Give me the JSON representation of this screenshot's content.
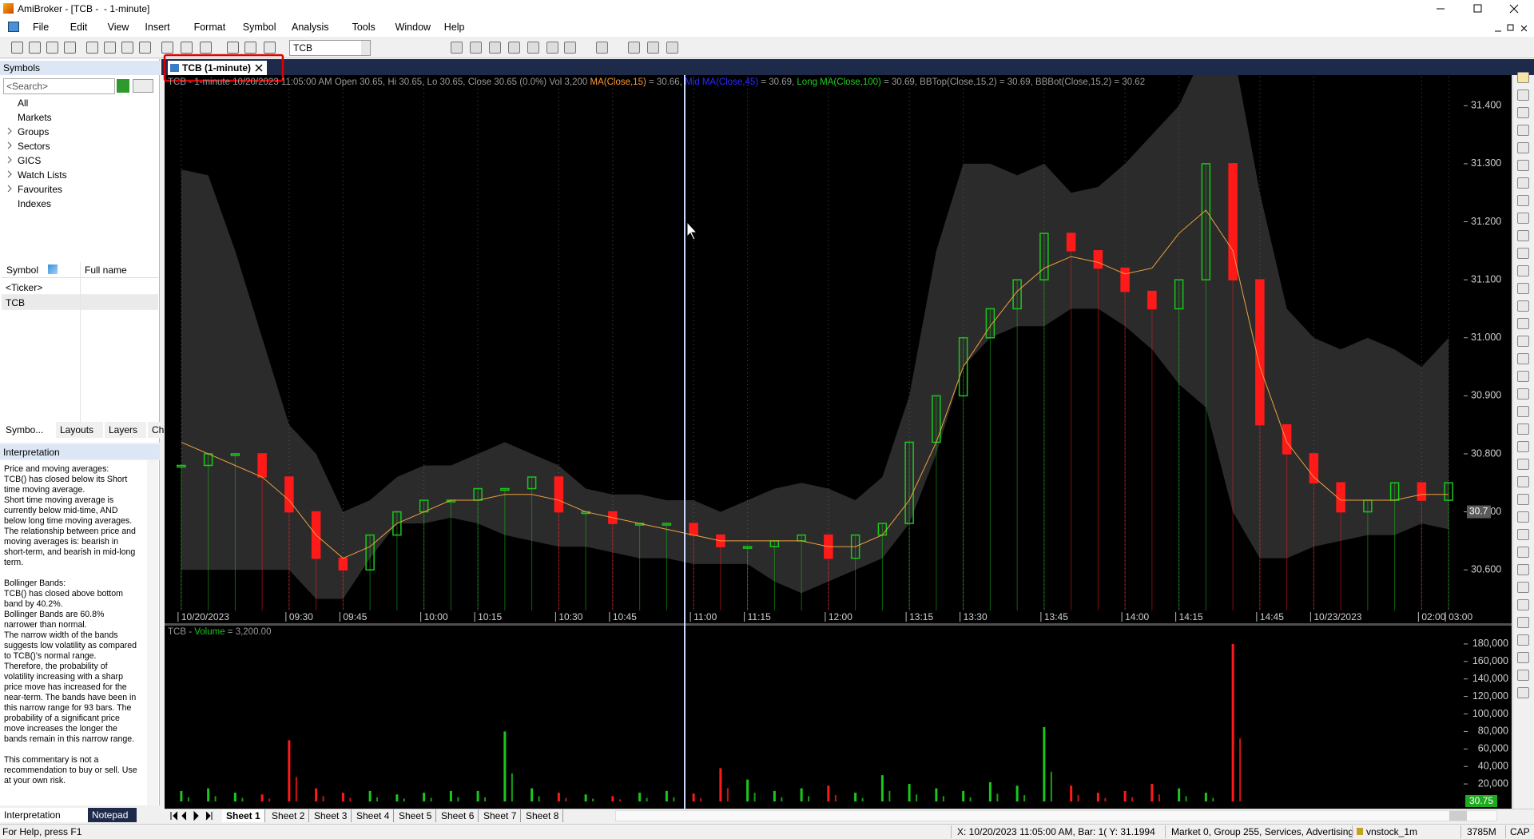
{
  "window": {
    "title": "AmiBroker - [TCB -  - 1-minute]"
  },
  "menu": [
    "File",
    "Edit",
    "View",
    "Insert",
    "Format",
    "Symbol",
    "Analysis",
    "Tools",
    "Window",
    "Help"
  ],
  "toolbar": {
    "symbol": "TCB"
  },
  "symbols_panel": {
    "title": "Symbols",
    "search": "<Search>",
    "tree": [
      "All",
      "Markets",
      "Groups",
      "Sectors",
      "GICS",
      "Watch Lists",
      "Favourites",
      "Indexes"
    ],
    "columns": [
      "Symbol",
      "Full name"
    ],
    "rows": [
      "<Ticker>",
      "TCB"
    ],
    "tabs": [
      "Symbo...",
      "Layouts",
      "Layers",
      "Charts"
    ]
  },
  "interpretation": {
    "title": "Interpretation",
    "paragraphs": [
      [
        "Price and moving averages:",
        "TCB() has closed below its Short",
        "time moving average.",
        "Short time moving average is",
        "currently below mid-time, AND",
        "below long time moving averages.",
        "The relationship between price and",
        "moving averages is: bearish in",
        "short-term, and bearish in mid-long",
        "term."
      ],
      [
        "Bollinger Bands:",
        "TCB() has closed above bottom",
        "band by 40.2%.",
        "Bollinger Bands are 60.8%",
        "narrower than normal.",
        "The narrow width of the bands",
        "suggests low volatility as compared",
        "to TCB()'s normal range.",
        "Therefore, the probability of",
        "volatility increasing with a sharp",
        "price move has increased for the",
        "near-term. The bands have been in",
        "this narrow range for 93 bars. The",
        "probability of a significant price",
        "move increases the longer the",
        "bands remain in this narrow range."
      ],
      [
        "This commentary is not a",
        "recommendation to buy or sell. Use",
        "at your own risk."
      ]
    ],
    "tabs": [
      "Interpretation",
      "Notepad"
    ]
  },
  "chart_tab": "TCB (1-minute)",
  "chart_data": [
    {
      "type": "price",
      "legend": [
        {
          "text": "TCB - 1-minute 10/20/2023 11:05:00 AM Open 30.65, Hi 30.65, Lo 30.65, Close 30.65 (0.0%) Vol 3,200 ",
          "color": "#9a9a9a"
        },
        {
          "text": "MA(Close,15)",
          "color": "#ff9933"
        },
        {
          "text": " = 30.66, ",
          "color": "#9a9a9a"
        },
        {
          "text": "Mid MA(Close,45)",
          "color": "#2a2aff"
        },
        {
          "text": " = 30.69, ",
          "color": "#9a9a9a"
        },
        {
          "text": "Long MA(Close,100)",
          "color": "#22cc22"
        },
        {
          "text": " = 30.69, BBTop(Close,15,2) = 30.69, BBBot(Close,15,2) = 30.62",
          "color": "#9a9a9a"
        }
      ],
      "categories": [
        "10/20/2023",
        null,
        null,
        null,
        "09:30",
        null,
        "09:45",
        null,
        null,
        "10:00",
        null,
        "10:15",
        null,
        null,
        "10:30",
        null,
        "10:45",
        null,
        null,
        "11:00",
        null,
        "11:15",
        null,
        null,
        "12:00",
        null,
        null,
        "13:15",
        null,
        "13:30",
        null,
        null,
        "13:45",
        null,
        null,
        "14:00",
        null,
        "14:15",
        null,
        null,
        "14:45",
        null,
        "10/23/2023",
        null,
        null,
        null,
        "02:00",
        "03:00"
      ],
      "close": [
        30.78,
        30.8,
        30.8,
        30.76,
        30.7,
        30.62,
        30.6,
        30.66,
        30.7,
        30.72,
        30.72,
        30.74,
        30.74,
        30.76,
        30.7,
        30.7,
        30.68,
        30.68,
        30.68,
        30.66,
        30.64,
        30.64,
        30.65,
        30.66,
        30.62,
        30.66,
        30.68,
        30.82,
        30.9,
        31.0,
        31.05,
        31.1,
        31.18,
        31.15,
        31.12,
        31.08,
        31.05,
        31.1,
        31.3,
        31.1,
        30.85,
        30.8,
        30.75,
        30.7,
        30.72,
        30.75,
        30.72,
        30.75
      ],
      "bb_top": [
        31.29,
        31.28,
        31.15,
        31.0,
        30.85,
        30.8,
        30.7,
        30.72,
        30.76,
        30.78,
        30.78,
        30.8,
        30.82,
        30.8,
        30.78,
        30.74,
        30.73,
        30.73,
        30.72,
        30.72,
        30.7,
        30.72,
        30.74,
        30.75,
        30.74,
        30.72,
        30.76,
        30.9,
        31.15,
        31.3,
        31.3,
        31.28,
        31.3,
        31.25,
        31.26,
        31.3,
        31.35,
        31.4,
        31.5,
        31.5,
        31.25,
        31.05,
        31.0,
        30.98,
        31.0,
        30.98,
        30.95,
        31.0
      ],
      "bb_bottom": [
        30.6,
        30.6,
        30.6,
        30.6,
        30.6,
        30.55,
        30.55,
        30.62,
        30.68,
        30.68,
        30.69,
        30.68,
        30.66,
        30.65,
        30.64,
        30.64,
        30.63,
        30.62,
        30.62,
        30.61,
        30.61,
        30.61,
        30.58,
        30.56,
        30.58,
        30.6,
        30.62,
        30.68,
        30.8,
        30.95,
        31.0,
        31.02,
        31.02,
        31.05,
        31.05,
        31.02,
        30.98,
        30.92,
        30.88,
        30.7,
        30.62,
        30.62,
        30.64,
        30.65,
        30.66,
        30.66,
        30.68,
        30.67
      ],
      "ma": [
        30.82,
        30.8,
        30.78,
        30.76,
        30.72,
        30.66,
        30.62,
        30.64,
        30.68,
        30.7,
        30.72,
        30.72,
        30.73,
        30.73,
        30.72,
        30.7,
        30.69,
        30.68,
        30.67,
        30.66,
        30.65,
        30.65,
        30.65,
        30.65,
        30.64,
        30.64,
        30.66,
        30.72,
        30.82,
        30.95,
        31.02,
        31.08,
        31.12,
        31.14,
        31.13,
        31.11,
        31.12,
        31.18,
        31.22,
        31.15,
        30.95,
        30.82,
        30.76,
        30.72,
        30.72,
        30.72,
        30.73,
        30.73
      ],
      "up_color": "#19c819",
      "down_color": "#ff1a1a",
      "band_color": "#2b2b2b",
      "ma_color": "#f0a040",
      "ylim": [
        30.53,
        31.45
      ],
      "yticks": [
        {
          "value": 30.6,
          "label": "30.600"
        },
        {
          "value": 30.7,
          "label": "30.700"
        },
        {
          "value": 30.8,
          "label": "30.800"
        },
        {
          "value": 30.9,
          "label": "30.900"
        },
        {
          "value": 31.0,
          "label": "31.000"
        },
        {
          "value": 31.1,
          "label": "31.100"
        },
        {
          "value": 31.2,
          "label": "31.200"
        },
        {
          "value": 31.3,
          "label": "31.300"
        },
        {
          "value": 31.4,
          "label": "31.400"
        }
      ],
      "price_tag": 30.7,
      "grid": false
    },
    {
      "type": "volume",
      "legend": [
        {
          "text": "TCB - ",
          "color": "#9a9a9a"
        },
        {
          "text": "Volume",
          "color": "#19c819"
        },
        {
          "text": " = 3,200.00",
          "color": "#9a9a9a"
        }
      ],
      "values": [
        12000,
        15000,
        10000,
        8000,
        70000,
        15000,
        10000,
        12000,
        8000,
        10000,
        12000,
        12000,
        80000,
        15000,
        10000,
        8000,
        6000,
        10000,
        12000,
        9000,
        38000,
        25000,
        12000,
        15000,
        18000,
        10000,
        30000,
        20000,
        15000,
        12000,
        22000,
        18000,
        85000,
        18000,
        10000,
        12000,
        20000,
        15000,
        10000,
        180000,
        0,
        0,
        0,
        0,
        0,
        0,
        0,
        0
      ],
      "ylim": [
        0,
        200000
      ],
      "yticks": [
        {
          "value": 20000,
          "label": "20,000"
        },
        {
          "value": 40000,
          "label": "40,000"
        },
        {
          "value": 60000,
          "label": "60,000"
        },
        {
          "value": 80000,
          "label": "80,000"
        },
        {
          "value": 100000,
          "label": "100,000"
        },
        {
          "value": 120000,
          "label": "120,000"
        },
        {
          "value": 140000,
          "label": "140,000"
        },
        {
          "value": 160000,
          "label": "160,000"
        },
        {
          "value": 180000,
          "label": "180,000"
        }
      ],
      "value_tag": 30.75
    }
  ],
  "sheets": [
    "Sheet 1",
    "Sheet 2",
    "Sheet 3",
    "Sheet 4",
    "Sheet 5",
    "Sheet 6",
    "Sheet 7",
    "Sheet 8"
  ],
  "status": {
    "help": "For Help, press F1",
    "cursor": "X: 10/20/2023 11:05:00 AM, Bar: 1( Y: 31.1994",
    "market": "Market 0, Group 255, Services, Advertising",
    "db": "vnstock_1m",
    "mem": "3785M",
    "caps": "CAP"
  }
}
